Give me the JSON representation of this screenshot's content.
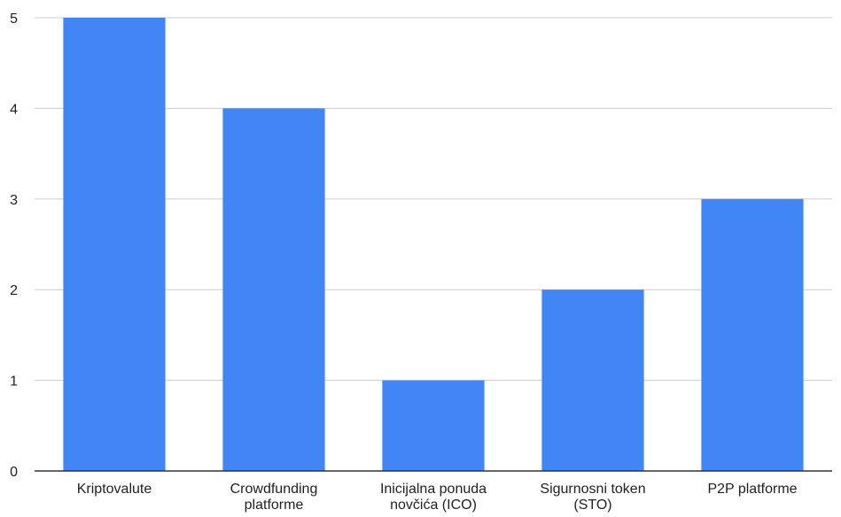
{
  "chart_data": {
    "type": "bar",
    "categories": [
      [
        "Kriptovalute"
      ],
      [
        "Crowdfunding",
        "platforme"
      ],
      [
        "Inicijalna ponuda",
        "novčića (ICO)"
      ],
      [
        "Sigurnosni token",
        "(STO)"
      ],
      [
        "P2P platforme"
      ]
    ],
    "values": [
      5,
      4,
      1,
      2,
      3
    ],
    "ylim": [
      0,
      5
    ],
    "yticks": [
      0,
      1,
      2,
      3,
      4,
      5
    ],
    "grid": true,
    "legend": "none",
    "bar_color": "#4285f4",
    "grid_color": "#cccccc",
    "axis_color": "#333333"
  }
}
